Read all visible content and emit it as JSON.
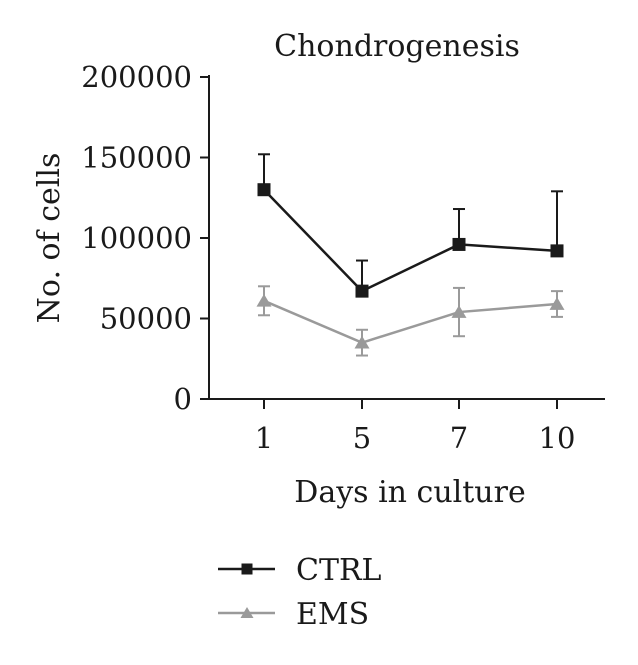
{
  "chart_data": {
    "type": "line",
    "title": "Chondrogenesis",
    "xlabel": "Days in culture",
    "ylabel": "No. of cells",
    "x_categories": [
      "1",
      "5",
      "7",
      "10"
    ],
    "y_ticks": [
      "0",
      "50000",
      "100000",
      "150000",
      "200000"
    ],
    "ylim": [
      0,
      200000
    ],
    "grid": false,
    "legend_position": "bottom-left",
    "series": [
      {
        "name": "CTRL",
        "color": "#1a1a1a",
        "marker": "square",
        "values": [
          130000,
          67000,
          96000,
          92000
        ],
        "error_upper": [
          22000,
          19000,
          22000,
          37000
        ],
        "error_lower": [
          0,
          0,
          0,
          0
        ]
      },
      {
        "name": "EMS",
        "color": "#9a9a9a",
        "marker": "triangle",
        "values": [
          61000,
          35000,
          54000,
          59000
        ],
        "error_upper": [
          9000,
          8000,
          15000,
          8000
        ],
        "error_lower": [
          9000,
          8000,
          15000,
          8000
        ]
      }
    ]
  }
}
